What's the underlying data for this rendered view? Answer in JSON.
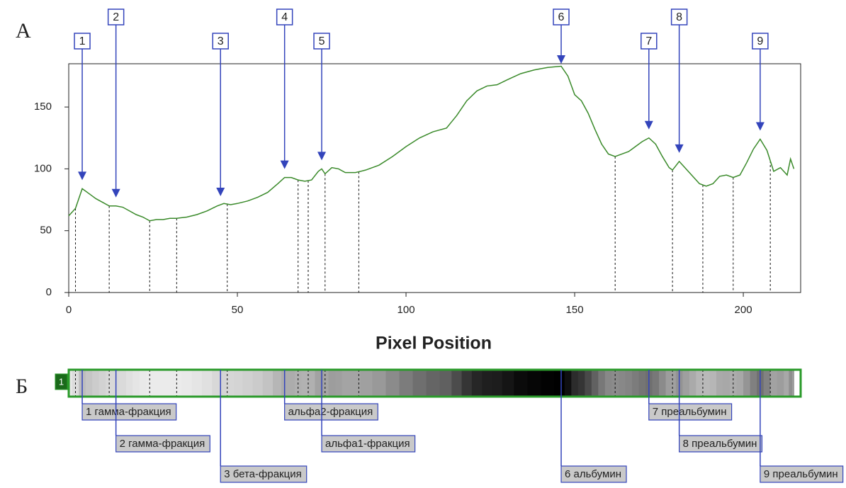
{
  "labels": {
    "panel_a": "А",
    "panel_b": "Б"
  },
  "chart_data": {
    "type": "line",
    "x_label": "Pixel Position",
    "xlim": [
      0,
      217
    ],
    "ylim": [
      0,
      185
    ],
    "xticks": [
      0,
      50,
      100,
      150,
      200
    ],
    "yticks": [
      0,
      50,
      100,
      150
    ],
    "series": [
      {
        "color": "#3a8a2a",
        "x": [
          0,
          2,
          4,
          6,
          8,
          10,
          12,
          14,
          16,
          18,
          20,
          22,
          24,
          26,
          28,
          30,
          32,
          35,
          38,
          41,
          44,
          46,
          48,
          50,
          53,
          56,
          59,
          62,
          64,
          66,
          68,
          70,
          72,
          74,
          75,
          76,
          78,
          80,
          82,
          85,
          88,
          92,
          96,
          100,
          104,
          108,
          112,
          115,
          118,
          121,
          124,
          127,
          130,
          134,
          138,
          142,
          146,
          148,
          150,
          152,
          154,
          156,
          158,
          160,
          162,
          164,
          166,
          168,
          170,
          172,
          174,
          176,
          178,
          179,
          181,
          183,
          185,
          187,
          189,
          191,
          193,
          195,
          197,
          199,
          201,
          203,
          205,
          207,
          209,
          211,
          213,
          214,
          215
        ],
        "values": [
          62,
          68,
          84,
          80,
          76,
          73,
          70,
          70,
          69,
          66,
          63,
          61,
          58,
          59,
          59,
          60,
          60,
          61,
          63,
          66,
          70,
          72,
          71,
          72,
          74,
          77,
          81,
          88,
          93,
          93,
          91,
          90,
          91,
          98,
          100,
          96,
          101,
          100,
          97,
          97,
          99,
          103,
          110,
          118,
          125,
          130,
          133,
          143,
          155,
          163,
          167,
          168,
          172,
          177,
          180,
          182,
          183,
          175,
          160,
          155,
          145,
          132,
          120,
          112,
          110,
          112,
          114,
          118,
          122,
          125,
          120,
          110,
          101,
          99,
          106,
          100,
          94,
          88,
          86,
          88,
          94,
          95,
          93,
          95,
          105,
          116,
          124,
          115,
          98,
          101,
          95,
          108,
          100
        ]
      }
    ],
    "boundaries": [
      2,
      12,
      24,
      32,
      47,
      68,
      71,
      76,
      86,
      162,
      179,
      188,
      197,
      208
    ],
    "lane": "1",
    "peaks": [
      {
        "label": "1",
        "x": 4,
        "fraction": "1 гамма-фракция"
      },
      {
        "label": "2",
        "x": 14,
        "fraction": "2 гамма-фракция"
      },
      {
        "label": "3",
        "x": 45,
        "fraction": "3 бета-фракция"
      },
      {
        "label": "4",
        "x": 64,
        "fraction": "альфа2-фракция"
      },
      {
        "label": "5",
        "x": 75,
        "fraction": "альфа1-фракция"
      },
      {
        "label": "6",
        "x": 146,
        "fraction": "6 альбумин"
      },
      {
        "label": "7",
        "x": 172,
        "fraction": "7 преальбумин"
      },
      {
        "label": "8",
        "x": 181,
        "fraction": "8 преальбумин"
      },
      {
        "label": "9",
        "x": 205,
        "fraction": "9 преальбумин"
      }
    ]
  }
}
